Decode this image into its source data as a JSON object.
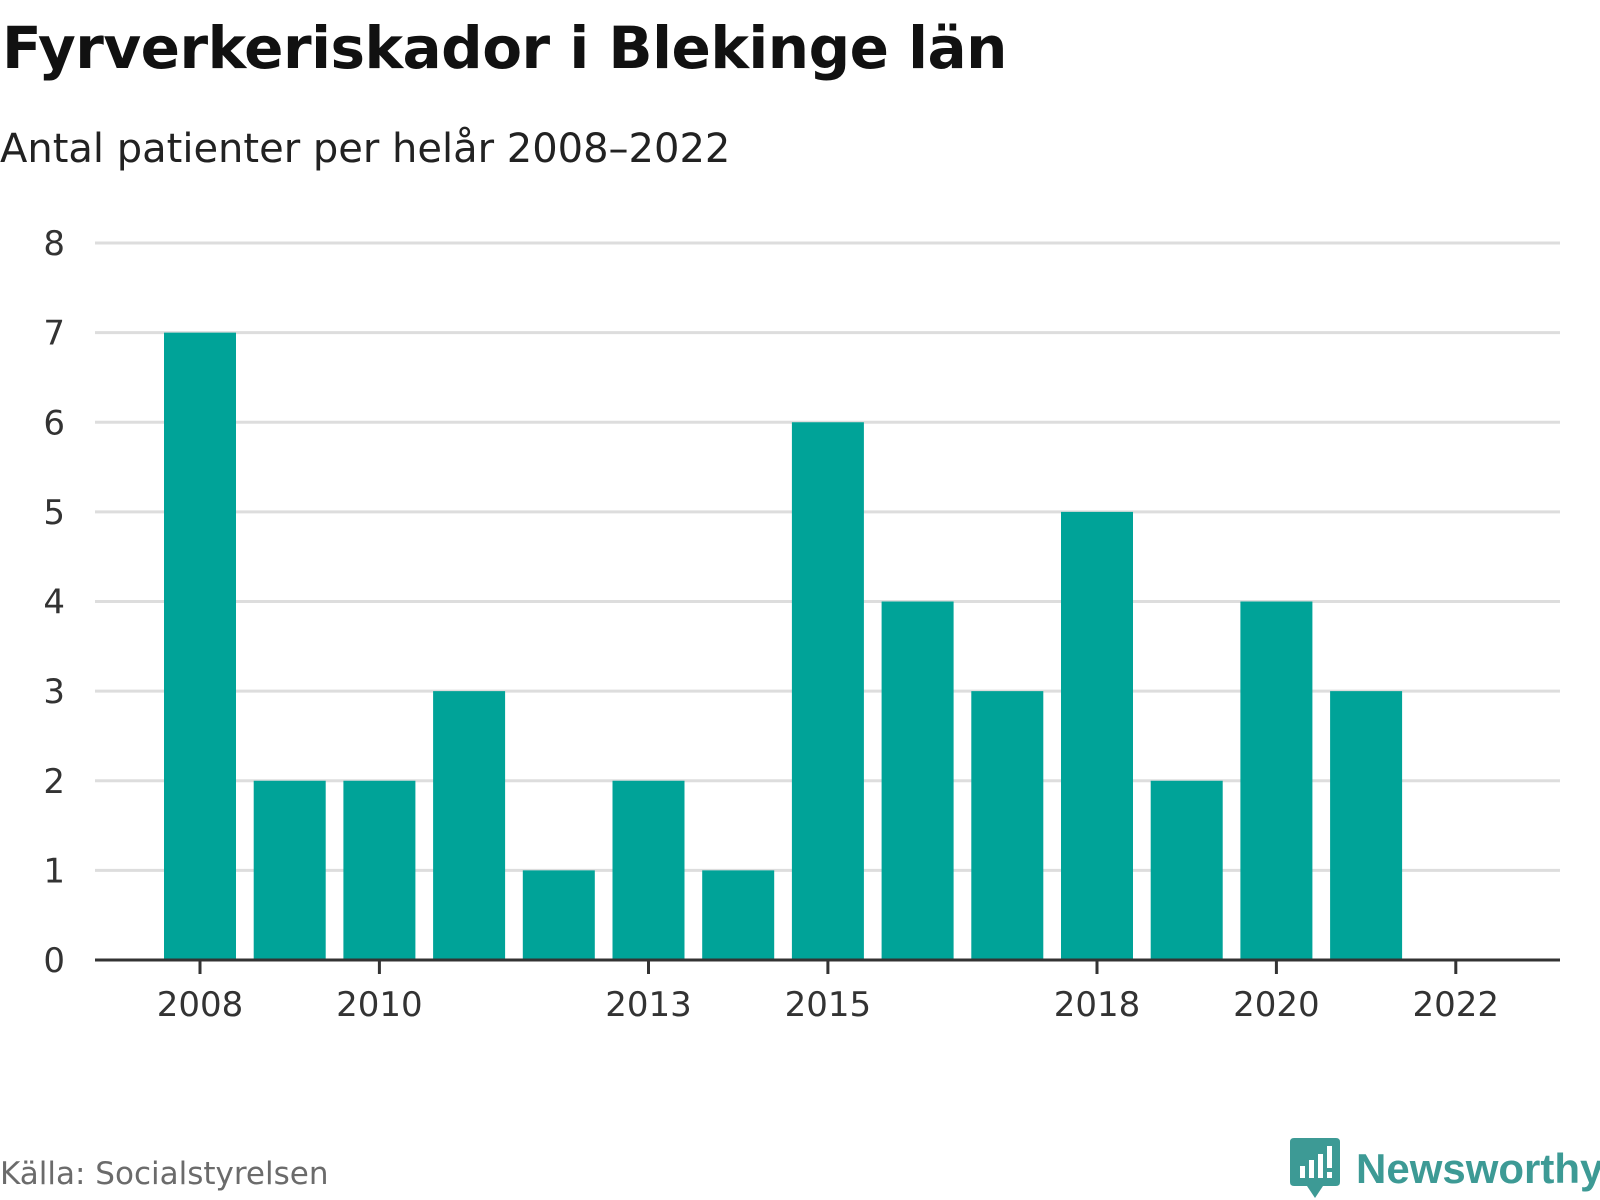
{
  "title": "Fyrverkeriskador i Blekinge län",
  "subtitle": "Antal patienter per helår 2008–2022",
  "source": "Källa: Socialstyrelsen",
  "brand": {
    "name": "Newsworthy",
    "icon": "newsworthy-logo-icon",
    "color": "#3d9a95"
  },
  "colors": {
    "bar": "#00a398",
    "grid": "#dddddd",
    "axis": "#333333"
  },
  "chart_data": {
    "type": "bar",
    "title": "Fyrverkeriskador i Blekinge län",
    "subtitle": "Antal patienter per helår 2008–2022",
    "xlabel": "",
    "ylabel": "",
    "categories": [
      2008,
      2009,
      2010,
      2011,
      2012,
      2013,
      2014,
      2015,
      2016,
      2017,
      2018,
      2019,
      2020,
      2021,
      2022
    ],
    "values": [
      7,
      2,
      2,
      3,
      1,
      2,
      1,
      6,
      4,
      3,
      5,
      2,
      4,
      3,
      0
    ],
    "ylim": [
      0,
      8
    ],
    "yticks": [
      0,
      1,
      2,
      3,
      4,
      5,
      6,
      7,
      8
    ],
    "xtick_labels": [
      "2008",
      "2010",
      "2013",
      "2015",
      "2018",
      "2020",
      "2022"
    ],
    "grid": true,
    "legend": "none"
  }
}
